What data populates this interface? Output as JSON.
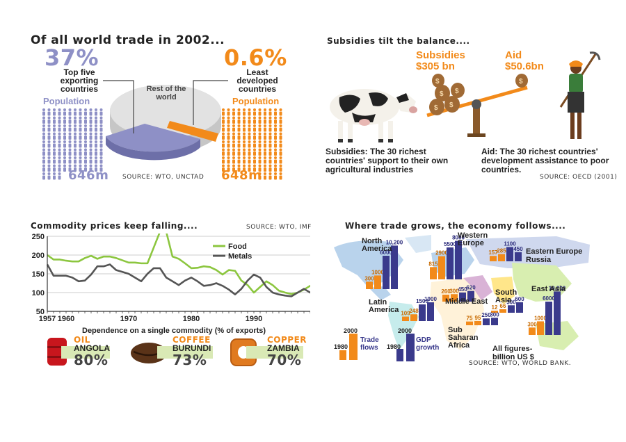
{
  "colors": {
    "orange": "#f28a1a",
    "lavender": "#8e90c6",
    "navy": "#3a3a8c",
    "food_green": "#8cc63f",
    "metals_grey": "#555555"
  },
  "panel_trade": {
    "title": "Of all world trade in 2002...",
    "left_pct": "37%",
    "left_label": "Top five exporting countries",
    "left_pop_label": "Population",
    "left_pop_value": "646m",
    "right_pct": "0.6%",
    "right_label": "Least developed countries",
    "right_pop_label": "Population",
    "right_pop_value": "648m",
    "rest_label": "Rest of the world",
    "source": "SOURCE: WTO, UNCTAD",
    "shares": [
      {
        "name": "Top five exporting countries",
        "value": 37
      },
      {
        "name": "Least developed countries",
        "value": 0.6
      },
      {
        "name": "Rest of the world",
        "value": 62.4
      }
    ]
  },
  "panel_subsidies": {
    "title": "Subsidies tilt the balance....",
    "subsidies_label": "Subsidies",
    "subsidies_value": "$305 bn",
    "aid_label": "Aid",
    "aid_value": "$50.6bn",
    "subsidies_note": "Subsidies: The 30 richest countries' support to their own agricultural industries",
    "aid_note": "Aid: The 30 richest countries' development assistance to poor countries.",
    "source": "SOURCE: OECD (2001)"
  },
  "panel_commodity": {
    "title": "Commodity prices keep falling....",
    "source": "SOURCE: WTO, IMF",
    "dependence_title": "Dependence on a single commodity (% of exports)",
    "items": [
      {
        "commodity": "OIL",
        "country": "ANGOLA",
        "pct": "80%"
      },
      {
        "commodity": "COFFEE",
        "country": "BURUNDI",
        "pct": "73%"
      },
      {
        "commodity": "COPPER",
        "country": "ZAMBIA",
        "pct": "70%"
      }
    ]
  },
  "panel_map": {
    "title": "Where trade grows, the economy follows....",
    "legend_trade": "Trade flows",
    "legend_gdp": "GDP growth",
    "legend_trade_1980": "1980",
    "legend_trade_2000": "2000",
    "legend_gdp_1980": "1980",
    "legend_gdp_2000": "2000",
    "note": "All figures- billion US $",
    "source": "SOURCE: WTO, WORLD BANK.",
    "regions": [
      {
        "name": "North America",
        "trade": [
          "300",
          "1000"
        ],
        "gdp": [
          "6000",
          "10,200"
        ]
      },
      {
        "name": "Western Europe",
        "trade": [
          "815",
          "2900"
        ],
        "gdp": [
          "5500",
          "8000"
        ]
      },
      {
        "name": "Eastern Europe Russia",
        "trade": [
          "157",
          "285"
        ],
        "gdp": [
          "1100",
          "450"
        ]
      },
      {
        "name": "Latin America",
        "trade": [
          "109",
          "248"
        ],
        "gdp": [
          "1500",
          "1900"
        ]
      },
      {
        "name": "Middle East",
        "trade": [
          "260",
          "300"
        ],
        "gdp": [
          "450",
          "620"
        ]
      },
      {
        "name": "South Asia",
        "trade": [
          "12",
          "66"
        ],
        "gdp": [
          "300",
          "600"
        ]
      },
      {
        "name": "East Asia",
        "trade": [
          "300",
          "1000"
        ],
        "gdp": [
          "6000",
          "10,200"
        ]
      },
      {
        "name": "Sub Saharan Africa",
        "trade": [
          "75",
          "95"
        ],
        "gdp": [
          "250",
          "300"
        ]
      }
    ]
  },
  "chart_data": [
    {
      "type": "line",
      "title": "Commodity prices keep falling....",
      "x": [
        1957,
        1958,
        1959,
        1960,
        1961,
        1962,
        1963,
        1964,
        1965,
        1966,
        1967,
        1968,
        1969,
        1970,
        1971,
        1972,
        1973,
        1974,
        1975,
        1976,
        1977,
        1978,
        1979,
        1980,
        1981,
        1982,
        1983,
        1984,
        1985,
        1986,
        1987,
        1988,
        1989,
        1990,
        1991,
        1992,
        1993,
        1994,
        1995,
        1996,
        1997,
        1998,
        1999,
        2000,
        2001
      ],
      "xticks": [
        1957,
        1960,
        1970,
        1980,
        1990,
        2001
      ],
      "yticks": [
        50,
        100,
        150,
        200,
        250
      ],
      "ylim": [
        50,
        250
      ],
      "xlim": [
        1957,
        2001
      ],
      "legend": "top-right",
      "series": [
        {
          "name": "Food",
          "values": [
            200,
            188,
            188,
            185,
            183,
            183,
            192,
            198,
            190,
            196,
            196,
            192,
            186,
            180,
            180,
            178,
            178,
            220,
            262,
            262,
            196,
            190,
            178,
            165,
            166,
            170,
            168,
            160,
            148,
            160,
            158,
            132,
            120,
            100,
            115,
            130,
            120,
            105,
            100,
            96,
            100,
            108,
            118,
            122,
            124
          ]
        },
        {
          "name": "Metals",
          "values": [
            175,
            145,
            145,
            145,
            140,
            130,
            132,
            148,
            170,
            170,
            175,
            160,
            155,
            150,
            140,
            130,
            150,
            165,
            165,
            140,
            130,
            120,
            132,
            140,
            130,
            118,
            120,
            125,
            118,
            108,
            95,
            110,
            132,
            148,
            140,
            115,
            100,
            95,
            92,
            90,
            100,
            110,
            100,
            95,
            105
          ]
        }
      ]
    },
    {
      "type": "pie",
      "title": "Of all world trade in 2002...",
      "categories": [
        "Top five exporting countries",
        "Least developed countries",
        "Rest of the world"
      ],
      "values": [
        37,
        0.6,
        62.4
      ]
    }
  ]
}
